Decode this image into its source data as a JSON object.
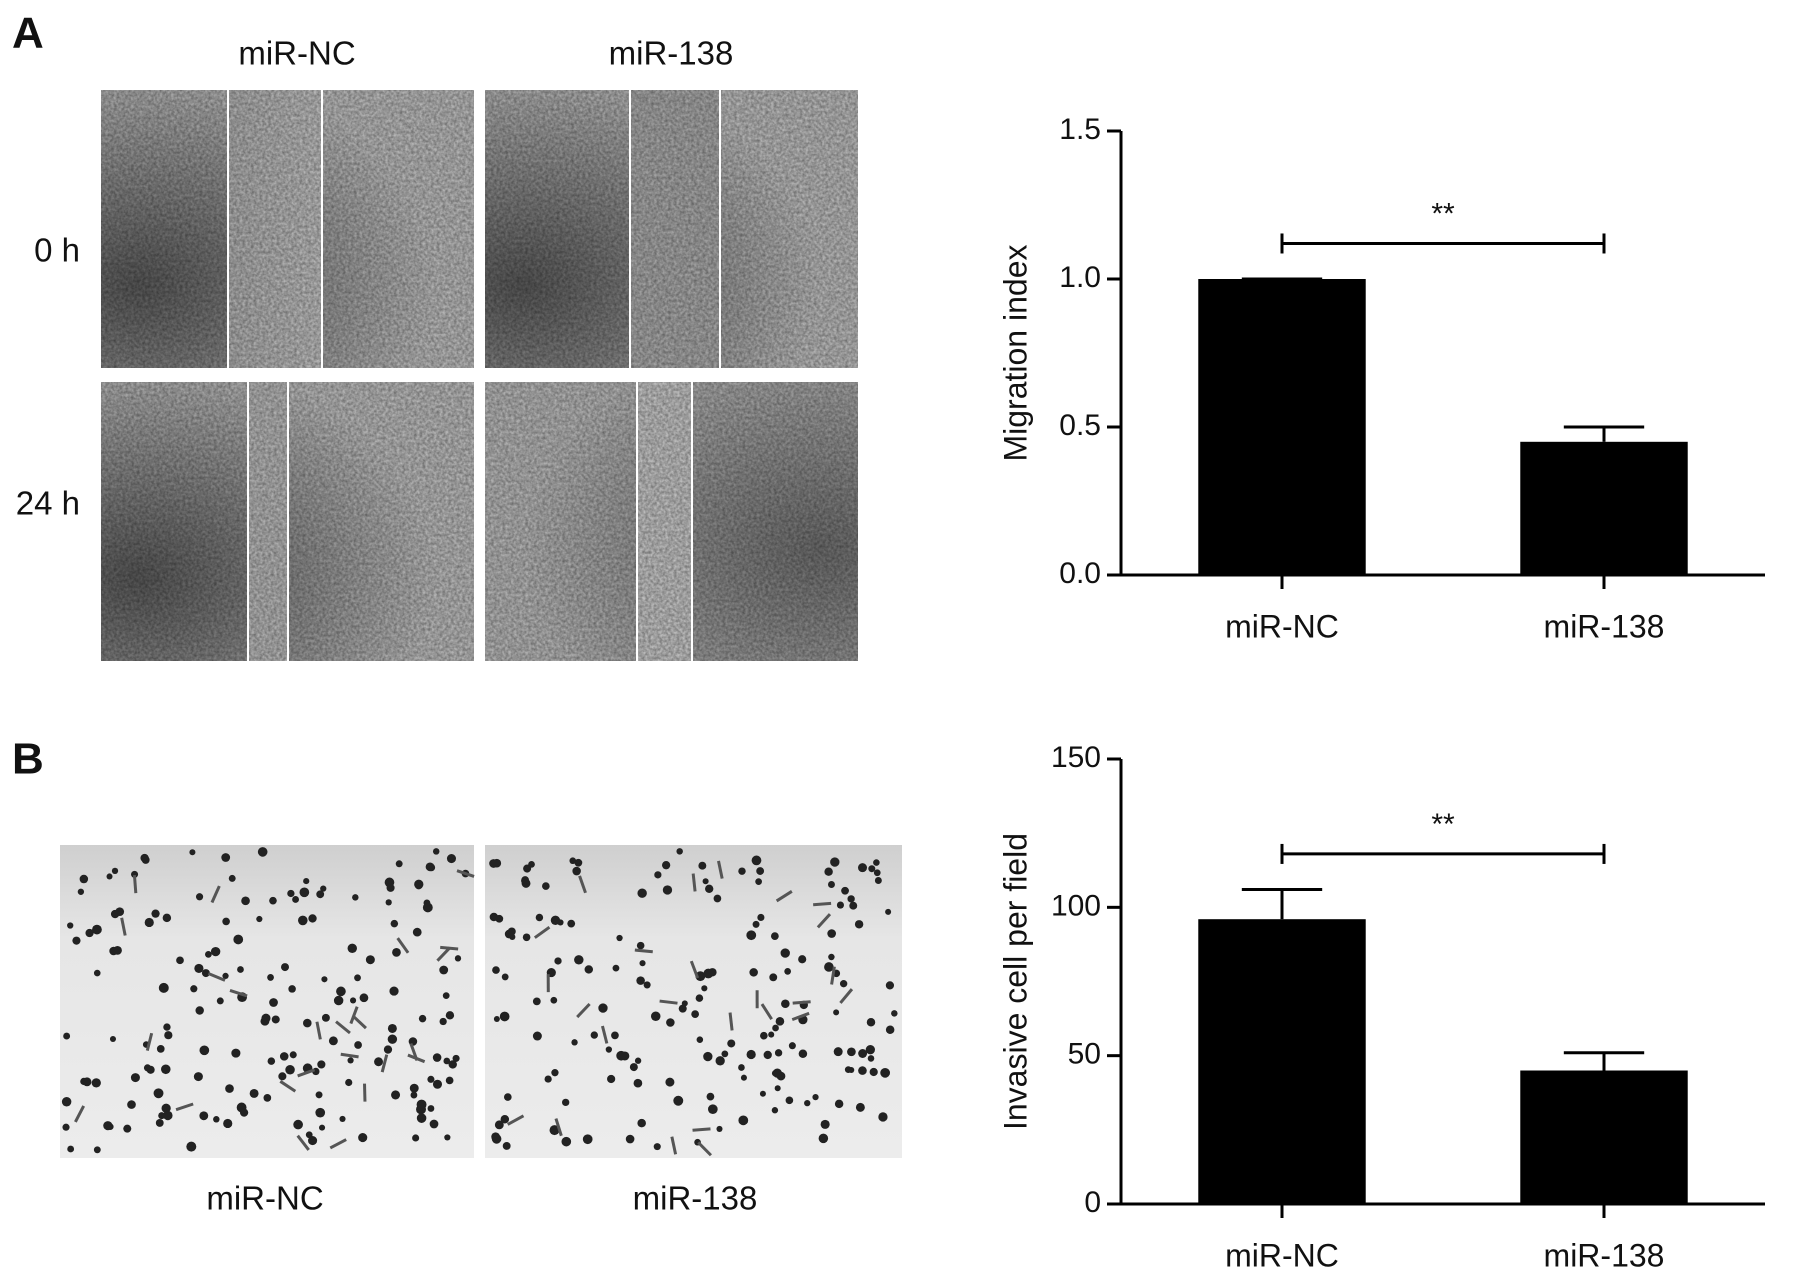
{
  "panels": [
    {
      "label": "A",
      "columns": [
        "miR-NC",
        "miR-138"
      ],
      "rows": [
        "0 h",
        "24 h"
      ]
    },
    {
      "label": "B",
      "captions": [
        "miR-NC",
        "miR-138"
      ]
    }
  ],
  "chart_data": [
    {
      "type": "bar",
      "ylabel": "Migration index",
      "categories": [
        "miR-NC",
        "miR-138"
      ],
      "values": [
        1.0,
        0.45
      ],
      "errors": [
        0,
        0.05
      ],
      "color": "#000000",
      "ylim": [
        0,
        1.5
      ],
      "yticks": [
        {
          "value": 0,
          "label": "0.0"
        },
        {
          "value": 0.5,
          "label": "0.5"
        },
        {
          "value": 1,
          "label": "1.0"
        },
        {
          "value": 1.5,
          "label": "1.5"
        }
      ],
      "annotation": "**"
    },
    {
      "type": "bar",
      "ylabel": "Invasive cell per field",
      "categories": [
        "miR-NC",
        "miR-138"
      ],
      "values": [
        96,
        45
      ],
      "errors": [
        10,
        6
      ],
      "color": "#000000",
      "ylim": [
        0,
        150
      ],
      "yticks": [
        0,
        50,
        100,
        150
      ],
      "annotation": "**"
    }
  ]
}
